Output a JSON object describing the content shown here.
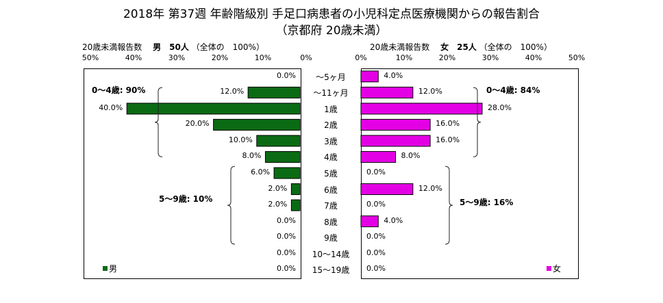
{
  "title": "2018年 第37週 年齢階級別 手足口病患者の小児科定点医療機関からの報告割合",
  "subtitle": "（京都府 20歳未満）",
  "left": {
    "caption_label": "20歳未満報告数",
    "caption_bold": "男　50人",
    "caption_total": "（全体の　100%）",
    "ticks": [
      "50%",
      "40%",
      "30%",
      "20%",
      "10%",
      "0%"
    ],
    "legend": "男",
    "color": "#0b6b14",
    "groups": [
      {
        "label": "0～4歳: 90%",
        "from": 0,
        "to": 5
      },
      {
        "label": "5～9歳: 10%",
        "from": 6,
        "to": 10
      }
    ]
  },
  "right": {
    "caption_label": "20歳未満報告数",
    "caption_bold": "女　25人",
    "caption_total": "（全体の　100%）",
    "ticks": [
      "0%",
      "10%",
      "20%",
      "30%",
      "40%",
      "50%"
    ],
    "legend": "女",
    "color": "#e400e4",
    "groups": [
      {
        "label": "0～4歳: 84%",
        "from": 0,
        "to": 5
      },
      {
        "label": "5～9歳: 16%",
        "from": 6,
        "to": 10
      }
    ]
  },
  "chart_data": {
    "type": "bar",
    "orientation": "horizontal",
    "layout": "population-pyramid",
    "categories": [
      "～5ヶ月",
      "～11ヶ月",
      "1歳",
      "2歳",
      "3歳",
      "4歳",
      "5歳",
      "6歳",
      "7歳",
      "8歳",
      "9歳",
      "10～14歳",
      "15～19歳"
    ],
    "series": [
      {
        "name": "男",
        "values": [
          0.0,
          12.0,
          40.0,
          20.0,
          10.0,
          8.0,
          6.0,
          2.0,
          2.0,
          0.0,
          0.0,
          0.0,
          0.0
        ],
        "labels": [
          "0.0%",
          "12.0%",
          "40.0%",
          "20.0%",
          "10.0%",
          "8.0%",
          "6.0%",
          "2.0%",
          "2.0%",
          "0.0%",
          "0.0%",
          "0.0%",
          "0.0%"
        ]
      },
      {
        "name": "女",
        "values": [
          4.0,
          12.0,
          28.0,
          16.0,
          16.0,
          8.0,
          0.0,
          12.0,
          0.0,
          4.0,
          0.0,
          0.0,
          0.0
        ],
        "labels": [
          "4.0%",
          "12.0%",
          "28.0%",
          "16.0%",
          "16.0%",
          "8.0%",
          "0.0%",
          "12.0%",
          "0.0%",
          "4.0%",
          "0.0%",
          "0.0%",
          "0.0%"
        ]
      }
    ],
    "xlim": [
      0,
      50
    ],
    "legend_position": "bottom-inside",
    "grid": false
  }
}
